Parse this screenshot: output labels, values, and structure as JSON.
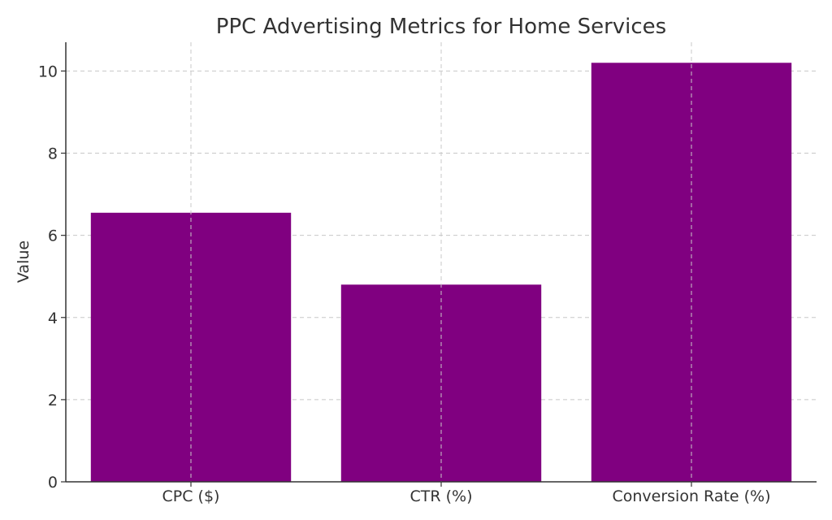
{
  "chart_data": {
    "type": "bar",
    "title": "PPC Advertising Metrics for Home Services",
    "xlabel": "",
    "ylabel": "Value",
    "categories": [
      "CPC ($)",
      "CTR (%)",
      "Conversion Rate (%)"
    ],
    "values": [
      6.55,
      4.8,
      10.2
    ],
    "ylim": [
      0,
      10.7
    ],
    "yticks": [
      0,
      2,
      4,
      6,
      8,
      10
    ],
    "grid": true,
    "bar_color": "#800080"
  }
}
